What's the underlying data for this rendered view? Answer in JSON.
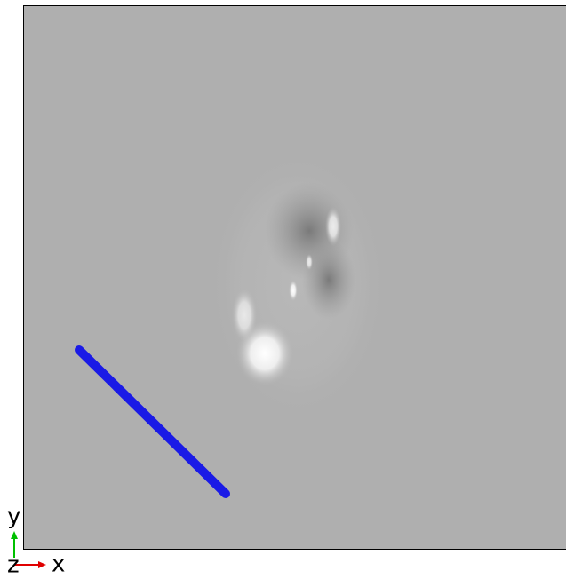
{
  "axes_triad": {
    "y_label": "y",
    "z_label": "z",
    "x_label": "x"
  }
}
